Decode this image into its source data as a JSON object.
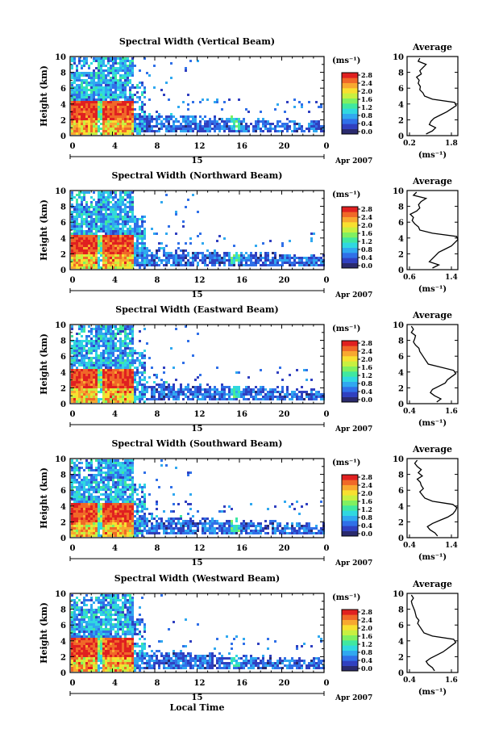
{
  "chart_data": [
    {
      "type": "heatmap",
      "title": "Spectral Width (Vertical Beam)",
      "ylabel": "Height (km)",
      "ylim": [
        0,
        10
      ],
      "yticks": [
        "0",
        "2",
        "4",
        "6",
        "8",
        "10"
      ],
      "xlim": [
        0,
        24
      ],
      "xticks": [
        "0",
        "4",
        "8",
        "12",
        "16",
        "20",
        "0"
      ],
      "day_label": "15",
      "date_label": "Apr 2007",
      "colorbar": {
        "unit": "(ms⁻¹)",
        "range": [
          0,
          2.8
        ],
        "ticks": [
          "2.8",
          "2.4",
          "2.0",
          "1.6",
          "1.2",
          "0.8",
          "0.4",
          "0.0"
        ]
      },
      "profile": {
        "title": "Average",
        "xlabel": "(ms⁻¹)",
        "xlim": [
          0.2,
          1.8
        ],
        "xticks": [
          "0.2",
          "1.8"
        ],
        "yticks": [
          "0",
          "2",
          "4",
          "6",
          "8",
          "10"
        ],
        "heights": [
          0.2,
          0.6,
          1.0,
          1.4,
          1.8,
          2.2,
          2.6,
          3.0,
          3.4,
          3.8,
          4.2,
          4.6,
          5.0,
          5.4,
          5.8,
          6.2,
          6.6,
          7.0,
          7.4,
          7.8,
          8.2,
          8.6,
          9.0,
          9.4,
          9.8
        ],
        "values": [
          0.8,
          1.0,
          1.1,
          0.9,
          0.95,
          1.05,
          1.25,
          1.45,
          1.6,
          1.75,
          1.7,
          1.0,
          0.75,
          0.7,
          0.6,
          0.62,
          0.55,
          0.58,
          0.5,
          0.65,
          0.6,
          0.7,
          0.8,
          0.55,
          0.6
        ]
      }
    },
    {
      "type": "heatmap",
      "title": "Spectral Width (Northward Beam)",
      "ylabel": "Height (km)",
      "ylim": [
        0,
        10
      ],
      "yticks": [
        "0",
        "2",
        "4",
        "6",
        "8",
        "10"
      ],
      "xlim": [
        0,
        24
      ],
      "xticks": [
        "0",
        "4",
        "8",
        "12",
        "16",
        "20",
        "0"
      ],
      "day_label": "15",
      "date_label": "Apr 2007",
      "colorbar": {
        "unit": "(ms⁻¹)",
        "range": [
          0,
          2.8
        ],
        "ticks": [
          "2.8",
          "2.4",
          "2.0",
          "1.6",
          "1.2",
          "0.8",
          "0.4",
          "0.0"
        ]
      },
      "profile": {
        "title": "Average",
        "xlabel": "(ms⁻¹)",
        "xlim": [
          0.6,
          1.4
        ],
        "xticks": [
          "0.6",
          "1.4"
        ],
        "yticks": [
          "0",
          "2",
          "4",
          "6",
          "8",
          "10"
        ],
        "heights": [
          0.2,
          0.6,
          1.0,
          1.4,
          1.8,
          2.2,
          2.6,
          3.0,
          3.4,
          3.8,
          4.2,
          4.6,
          5.0,
          5.4,
          5.8,
          6.2,
          6.6,
          7.0,
          7.4,
          7.8,
          8.2,
          8.6,
          9.0,
          9.4,
          9.8
        ],
        "values": [
          1.0,
          1.1,
          0.95,
          1.0,
          1.05,
          1.1,
          1.2,
          1.3,
          1.35,
          1.4,
          1.38,
          1.0,
          0.8,
          0.78,
          0.72,
          0.68,
          0.7,
          0.65,
          0.75,
          0.8,
          0.78,
          0.82,
          0.9,
          0.7,
          0.75
        ]
      }
    },
    {
      "type": "heatmap",
      "title": "Spectral Width (Eastward Beam)",
      "ylabel": "Height (km)",
      "ylim": [
        0,
        10
      ],
      "yticks": [
        "0",
        "2",
        "4",
        "6",
        "8",
        "10"
      ],
      "xlim": [
        0,
        24
      ],
      "xticks": [
        "0",
        "4",
        "8",
        "12",
        "16",
        "20",
        "0"
      ],
      "day_label": "15",
      "date_label": "Apr 2007",
      "colorbar": {
        "unit": "(ms⁻¹)",
        "range": [
          0,
          2.8
        ],
        "ticks": [
          "2.8",
          "2.4",
          "2.0",
          "1.6",
          "1.2",
          "0.8",
          "0.4",
          "0.0"
        ]
      },
      "profile": {
        "title": "Average",
        "xlabel": "(ms⁻¹)",
        "xlim": [
          0.4,
          1.6
        ],
        "xticks": [
          "0.4",
          "1.6"
        ],
        "yticks": [
          "0",
          "2",
          "4",
          "6",
          "8",
          "10"
        ],
        "heights": [
          0.2,
          0.6,
          1.0,
          1.4,
          1.8,
          2.2,
          2.6,
          3.0,
          3.4,
          3.8,
          4.2,
          4.6,
          5.0,
          5.4,
          5.8,
          6.2,
          6.6,
          7.0,
          7.4,
          7.8,
          8.2,
          8.6,
          9.0,
          9.4,
          9.8
        ],
        "values": [
          1.1,
          1.2,
          1.05,
          0.95,
          1.0,
          1.15,
          1.3,
          1.35,
          1.45,
          1.55,
          1.5,
          1.2,
          0.9,
          0.85,
          0.8,
          0.75,
          0.7,
          0.68,
          0.6,
          0.55,
          0.58,
          0.6,
          0.5,
          0.55,
          0.5
        ]
      }
    },
    {
      "type": "heatmap",
      "title": "Spectral Width (Southward Beam)",
      "ylabel": "Height (km)",
      "ylim": [
        0,
        10
      ],
      "yticks": [
        "0",
        "2",
        "4",
        "6",
        "8",
        "10"
      ],
      "xlim": [
        0,
        24
      ],
      "xticks": [
        "0",
        "4",
        "8",
        "12",
        "16",
        "20",
        "0"
      ],
      "day_label": "15",
      "date_label": "Apr 2007",
      "colorbar": {
        "unit": "(ms⁻¹)",
        "range": [
          0,
          2.8
        ],
        "ticks": [
          "2.8",
          "2.4",
          "2.0",
          "1.6",
          "1.2",
          "0.8",
          "0.4",
          "0.0"
        ]
      },
      "profile": {
        "title": "Average",
        "xlabel": "(ms⁻¹)",
        "xlim": [
          0.4,
          1.4
        ],
        "xticks": [
          "0.4",
          "1.4"
        ],
        "yticks": [
          "0",
          "2",
          "4",
          "6",
          "8",
          "10"
        ],
        "heights": [
          0.2,
          0.6,
          1.0,
          1.4,
          1.8,
          2.2,
          2.6,
          3.0,
          3.4,
          3.8,
          4.2,
          4.6,
          5.0,
          5.4,
          5.8,
          6.2,
          6.6,
          7.0,
          7.4,
          7.8,
          8.2,
          8.6,
          9.0,
          9.4,
          9.8
        ],
        "values": [
          1.0,
          0.95,
          0.85,
          0.8,
          0.9,
          1.05,
          1.2,
          1.3,
          1.35,
          1.38,
          1.3,
          0.9,
          0.75,
          0.7,
          0.65,
          0.72,
          0.68,
          0.66,
          0.6,
          0.7,
          0.62,
          0.68,
          0.6,
          0.55,
          0.6
        ]
      }
    },
    {
      "type": "heatmap",
      "title": "Spectral Width (Westward Beam)",
      "ylabel": "Height (km)",
      "ylim": [
        0,
        10
      ],
      "yticks": [
        "0",
        "2",
        "4",
        "6",
        "8",
        "10"
      ],
      "xlim": [
        0,
        24
      ],
      "xticks": [
        "0",
        "4",
        "8",
        "12",
        "16",
        "20",
        "0"
      ],
      "day_label": "15",
      "date_label": "Apr 2007",
      "xlabel": "Local Time",
      "colorbar": {
        "unit": "(ms⁻¹)",
        "range": [
          0,
          2.8
        ],
        "ticks": [
          "2.8",
          "2.4",
          "2.0",
          "1.6",
          "1.2",
          "0.8",
          "0.4",
          "0.0"
        ]
      },
      "profile": {
        "title": "Average",
        "xlabel": "(ms⁻¹)",
        "xlim": [
          0.4,
          1.6
        ],
        "xticks": [
          "0.4",
          "1.6"
        ],
        "yticks": [
          "0",
          "2",
          "4",
          "6",
          "8",
          "10"
        ],
        "heights": [
          0.2,
          0.6,
          1.0,
          1.4,
          1.8,
          2.2,
          2.6,
          3.0,
          3.4,
          3.8,
          4.2,
          4.6,
          5.0,
          5.4,
          5.8,
          6.2,
          6.6,
          7.0,
          7.4,
          7.8,
          8.2,
          8.6,
          9.0,
          9.4,
          9.8
        ],
        "values": [
          1.05,
          1.0,
          0.9,
          0.85,
          0.95,
          1.1,
          1.25,
          1.35,
          1.45,
          1.55,
          1.5,
          1.0,
          0.8,
          0.75,
          0.7,
          0.65,
          0.68,
          0.62,
          0.6,
          0.58,
          0.55,
          0.52,
          0.5,
          0.55,
          0.5
        ]
      }
    }
  ],
  "colormap": [
    "#2a2a6e",
    "#3040c0",
    "#3070e8",
    "#30a8f0",
    "#30d8e0",
    "#40e8a0",
    "#80f060",
    "#c8f040",
    "#f8e030",
    "#f8a830",
    "#f06828",
    "#e02020"
  ]
}
